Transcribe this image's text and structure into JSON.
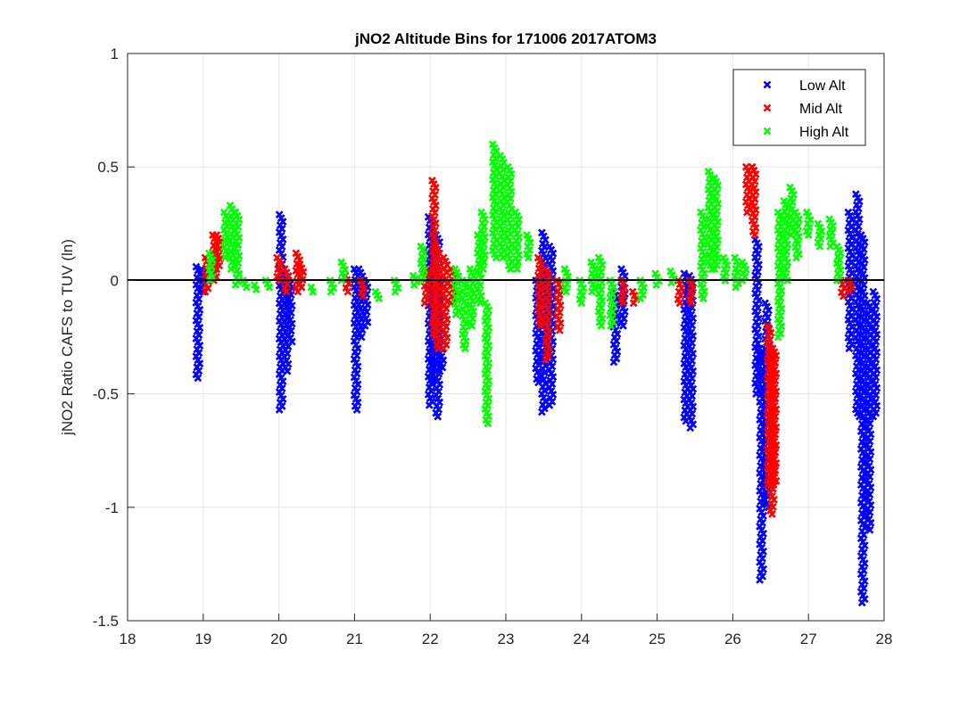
{
  "chart_data": {
    "type": "scatter",
    "title": "jNO2 Altitude Bins for 171006 2017ATOM3",
    "xlabel": "",
    "ylabel": "jNO2 Ratio CAFS to TUV (ln)",
    "xlim": [
      18,
      28
    ],
    "ylim": [
      -1.5,
      1
    ],
    "xticks": [
      18,
      19,
      20,
      21,
      22,
      23,
      24,
      25,
      26,
      27,
      28
    ],
    "yticks": [
      1,
      0.5,
      0,
      -0.5,
      -1,
      -1.5
    ],
    "ytick_labels": [
      "1",
      "0.5",
      "0",
      "-0.5",
      "-1",
      "-1.5"
    ],
    "grid": true,
    "reference_line_y": 0,
    "legend_position": "top-right",
    "marker": "x",
    "series_note": "each entry [x, ymin, ymax] is a dense vertical band of x markers at that x",
    "series": [
      {
        "name": "Low Alt",
        "color": "#0000ff",
        "bands": [
          [
            18.93,
            -0.43,
            0.06
          ],
          [
            19.0,
            -0.05,
            0.05
          ],
          [
            20.03,
            -0.57,
            0.29
          ],
          [
            20.1,
            -0.4,
            0.05
          ],
          [
            20.15,
            -0.27,
            0.0
          ],
          [
            21.02,
            -0.57,
            0.05
          ],
          [
            21.08,
            -0.25,
            0.05
          ],
          [
            21.15,
            -0.2,
            0.0
          ],
          [
            22.0,
            -0.55,
            0.28
          ],
          [
            22.05,
            -0.45,
            0.1
          ],
          [
            22.1,
            -0.6,
            0.2
          ],
          [
            22.15,
            -0.4,
            0.0
          ],
          [
            23.42,
            -0.45,
            0.0
          ],
          [
            23.5,
            -0.58,
            0.21
          ],
          [
            23.6,
            -0.55,
            0.15
          ],
          [
            24.45,
            -0.36,
            -0.05
          ],
          [
            24.55,
            -0.2,
            0.05
          ],
          [
            25.38,
            -0.62,
            0.03
          ],
          [
            25.45,
            -0.65,
            0.02
          ],
          [
            26.32,
            -0.5,
            0.18
          ],
          [
            26.38,
            -1.32,
            -0.3
          ],
          [
            26.45,
            -1.0,
            -0.1
          ],
          [
            27.55,
            -0.3,
            0.3
          ],
          [
            27.65,
            -0.6,
            0.38
          ],
          [
            27.72,
            -1.42,
            0.2
          ],
          [
            27.8,
            -1.1,
            -0.1
          ],
          [
            27.88,
            -0.6,
            -0.05
          ]
        ]
      },
      {
        "name": "Mid Alt",
        "color": "#ff0000",
        "bands": [
          [
            19.05,
            -0.05,
            0.1
          ],
          [
            19.15,
            0.0,
            0.2
          ],
          [
            19.2,
            0.05,
            0.2
          ],
          [
            20.0,
            0.0,
            0.1
          ],
          [
            20.1,
            -0.05,
            0.05
          ],
          [
            20.25,
            -0.05,
            0.12
          ],
          [
            20.3,
            -0.03,
            0.07
          ],
          [
            20.9,
            -0.05,
            0.02
          ],
          [
            21.1,
            -0.07,
            0.0
          ],
          [
            21.95,
            -0.1,
            0.05
          ],
          [
            22.05,
            -0.25,
            0.44
          ],
          [
            22.1,
            -0.3,
            0.15
          ],
          [
            22.2,
            -0.3,
            0.1
          ],
          [
            22.3,
            -0.1,
            0.05
          ],
          [
            23.45,
            -0.2,
            0.1
          ],
          [
            23.55,
            -0.35,
            0.05
          ],
          [
            23.7,
            -0.22,
            0.0
          ],
          [
            24.55,
            -0.1,
            0.0
          ],
          [
            24.7,
            -0.1,
            -0.05
          ],
          [
            25.3,
            -0.1,
            0.0
          ],
          [
            25.45,
            -0.1,
            0.0
          ],
          [
            26.2,
            0.3,
            0.5
          ],
          [
            26.28,
            0.2,
            0.5
          ],
          [
            26.48,
            -0.9,
            -0.2
          ],
          [
            26.52,
            -1.03,
            -0.3
          ],
          [
            26.55,
            -0.9,
            -0.3
          ],
          [
            27.45,
            -0.07,
            0.0
          ],
          [
            27.55,
            -0.05,
            0.0
          ]
        ]
      },
      {
        "name": "High Alt",
        "color": "#00ff00",
        "bands": [
          [
            19.1,
            0.0,
            0.12
          ],
          [
            19.3,
            0.1,
            0.3
          ],
          [
            19.38,
            0.05,
            0.33
          ],
          [
            19.45,
            -0.02,
            0.3
          ],
          [
            19.55,
            -0.03,
            0.0
          ],
          [
            19.7,
            -0.04,
            -0.02
          ],
          [
            19.85,
            -0.03,
            0.0
          ],
          [
            20.45,
            -0.05,
            -0.03
          ],
          [
            20.7,
            -0.05,
            0.0
          ],
          [
            20.85,
            0.0,
            0.08
          ],
          [
            21.3,
            -0.08,
            -0.05
          ],
          [
            21.55,
            -0.05,
            0.0
          ],
          [
            21.8,
            -0.02,
            0.02
          ],
          [
            21.9,
            0.0,
            0.15
          ],
          [
            22.35,
            -0.15,
            0.05
          ],
          [
            22.45,
            -0.3,
            0.0
          ],
          [
            22.55,
            -0.2,
            0.05
          ],
          [
            22.65,
            -0.1,
            0.2
          ],
          [
            22.7,
            0.05,
            0.3
          ],
          [
            22.75,
            -0.63,
            -0.1
          ],
          [
            22.85,
            0.1,
            0.6
          ],
          [
            22.95,
            0.1,
            0.55
          ],
          [
            23.05,
            0.05,
            0.5
          ],
          [
            23.15,
            0.05,
            0.3
          ],
          [
            23.3,
            0.1,
            0.2
          ],
          [
            23.8,
            -0.05,
            0.05
          ],
          [
            24.0,
            -0.1,
            0.0
          ],
          [
            24.15,
            -0.05,
            0.08
          ],
          [
            24.25,
            -0.2,
            0.1
          ],
          [
            24.4,
            -0.2,
            0.0
          ],
          [
            24.8,
            -0.08,
            0.0
          ],
          [
            25.0,
            -0.02,
            0.03
          ],
          [
            25.2,
            -0.01,
            0.04
          ],
          [
            25.6,
            -0.08,
            0.3
          ],
          [
            25.7,
            0.05,
            0.48
          ],
          [
            25.78,
            0.05,
            0.45
          ],
          [
            25.9,
            0.0,
            0.1
          ],
          [
            26.05,
            -0.03,
            0.1
          ],
          [
            26.15,
            0.0,
            0.08
          ],
          [
            26.62,
            -0.25,
            0.3
          ],
          [
            26.7,
            0.0,
            0.35
          ],
          [
            26.78,
            0.2,
            0.41
          ],
          [
            26.85,
            0.1,
            0.3
          ],
          [
            27.0,
            0.2,
            0.3
          ],
          [
            27.15,
            0.15,
            0.25
          ],
          [
            27.3,
            0.15,
            0.27
          ],
          [
            27.4,
            0.0,
            0.15
          ]
        ]
      }
    ]
  }
}
